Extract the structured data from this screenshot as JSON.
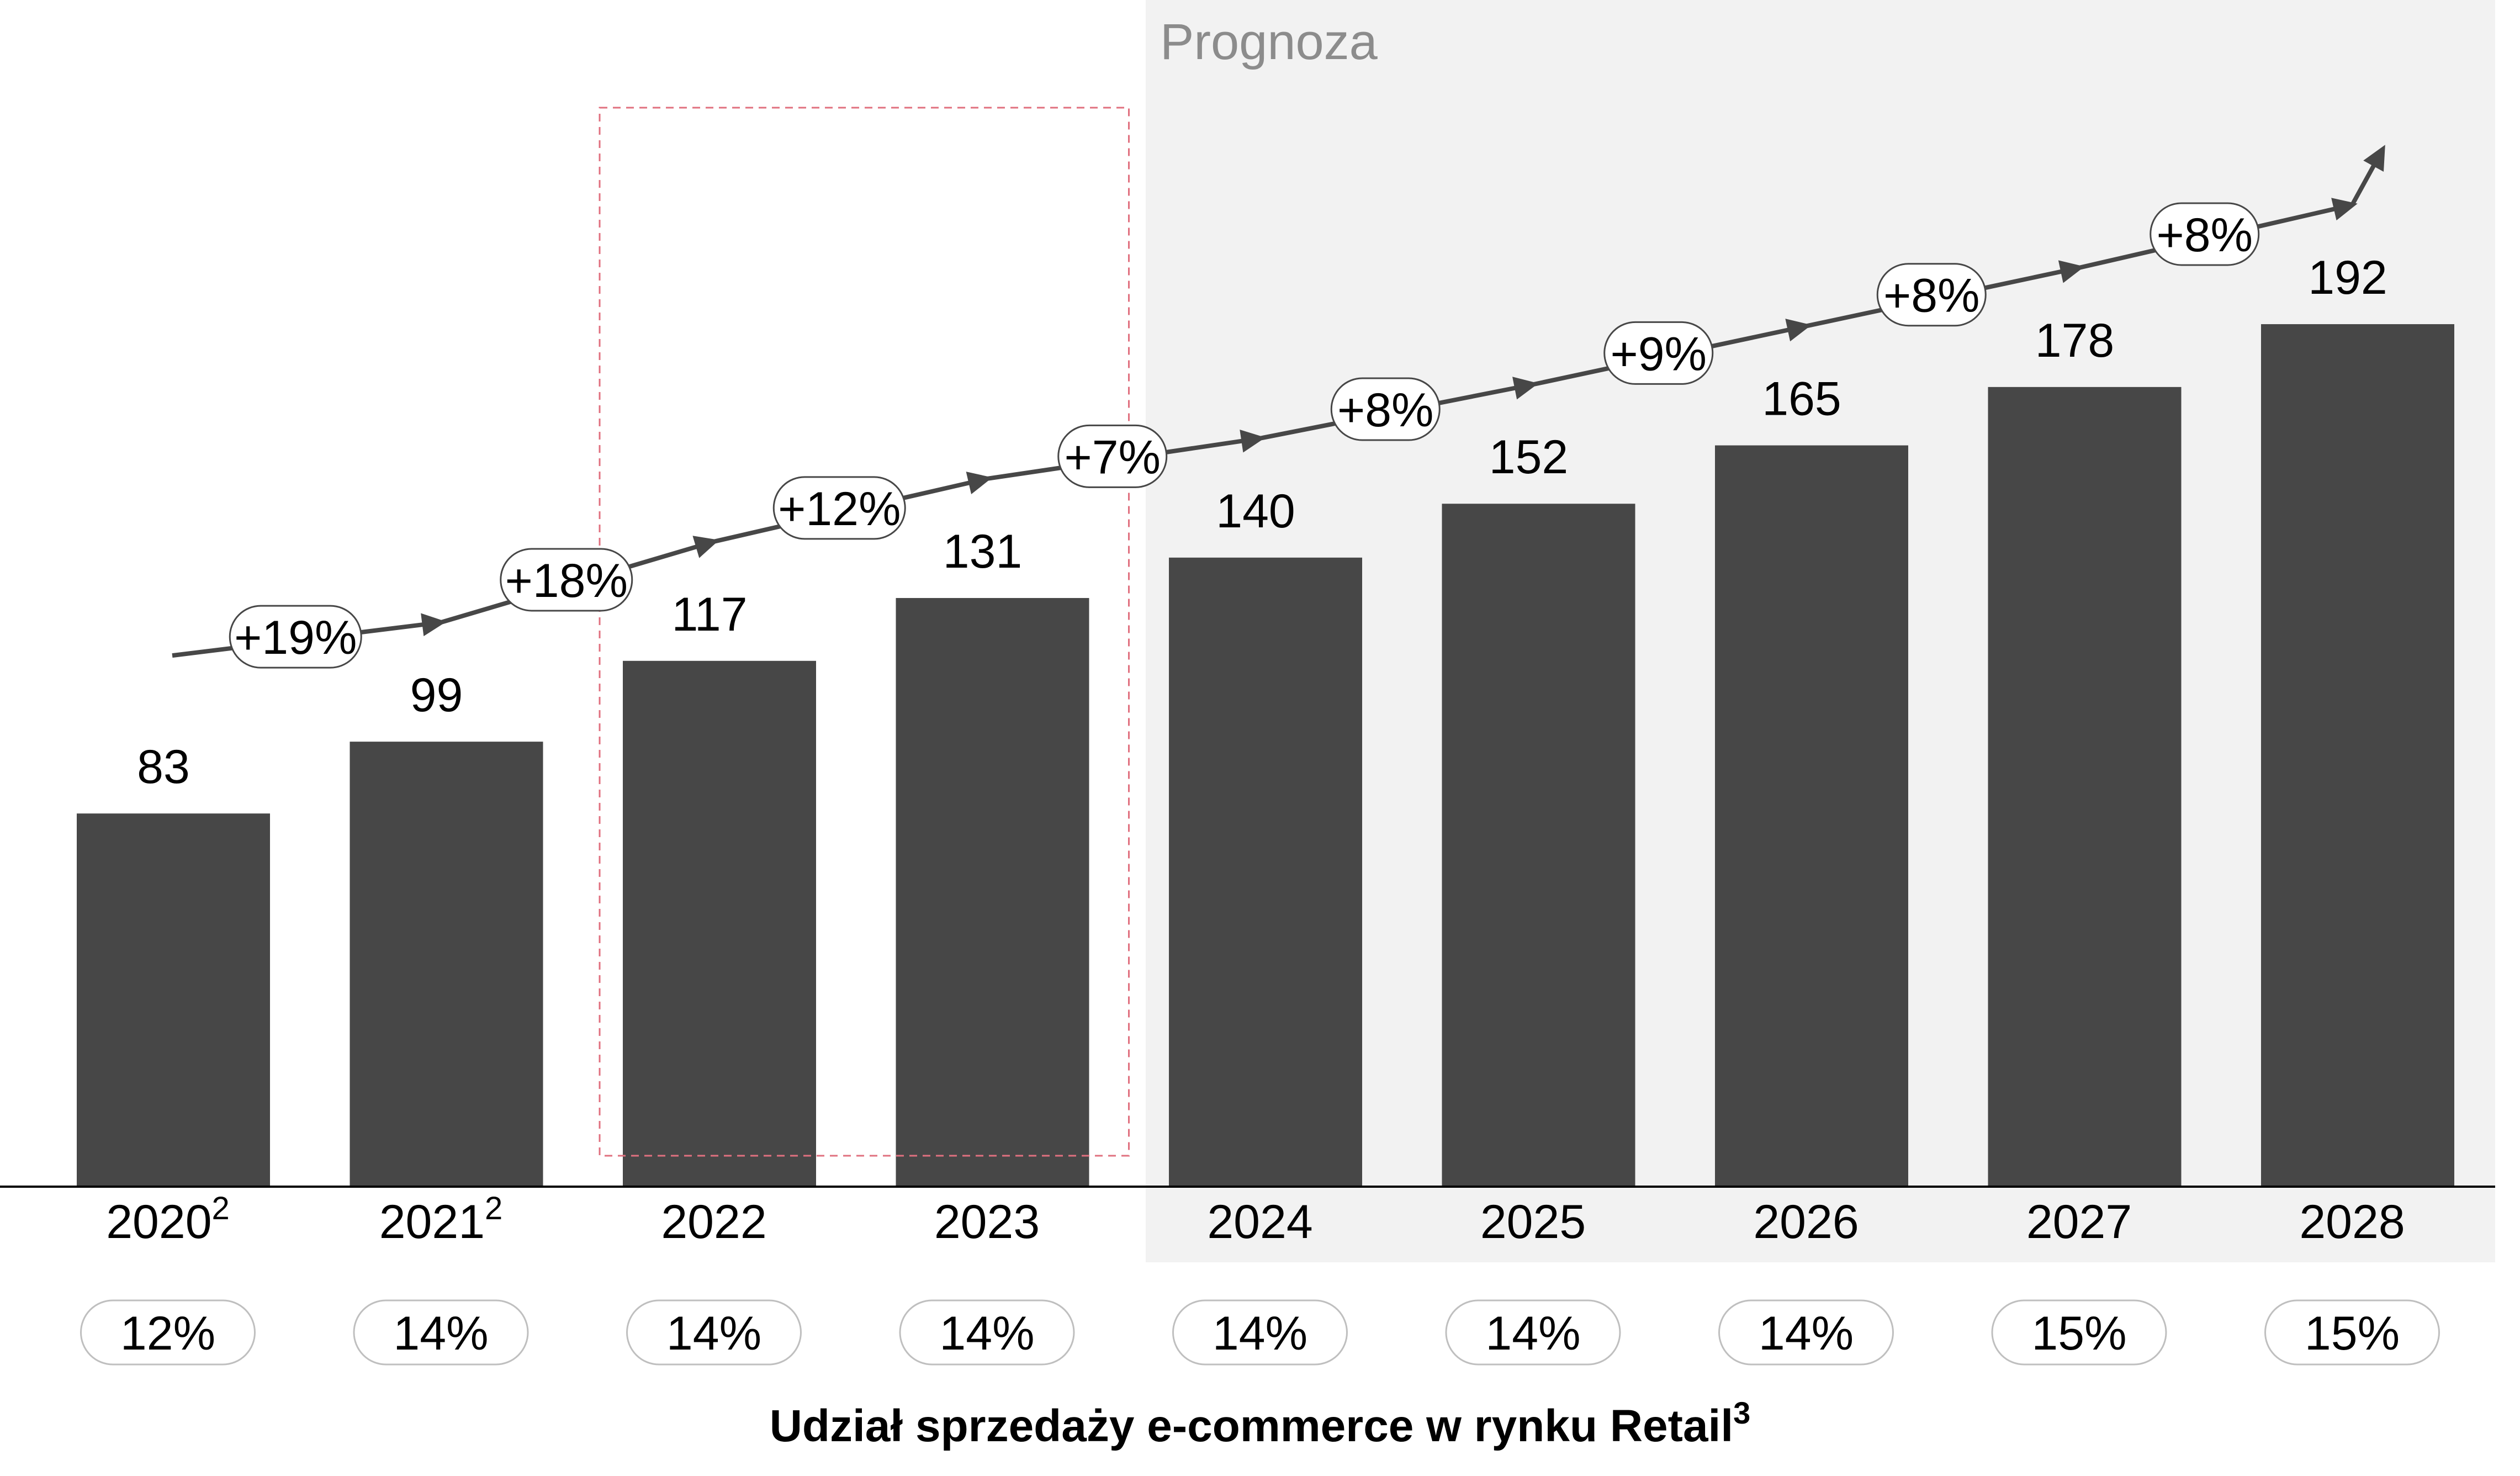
{
  "chart_data": {
    "type": "bar",
    "categories": [
      "2020",
      "2021",
      "2022",
      "2023",
      "2024",
      "2025",
      "2026",
      "2027",
      "2028"
    ],
    "category_superscripts": [
      "2",
      "2",
      "",
      "",
      "",
      "",
      "",
      "",
      ""
    ],
    "values": [
      83,
      99,
      117,
      131,
      140,
      152,
      165,
      178,
      192
    ],
    "value_labels": [
      "83",
      "99",
      "117",
      "131",
      "140",
      "152",
      "165",
      "178",
      "192"
    ],
    "growth_labels": [
      "+19%",
      "+18%",
      "+12%",
      "+7%",
      "+8%",
      "+9%",
      "+8%",
      "+8%"
    ],
    "share_labels": [
      "12%",
      "14%",
      "14%",
      "14%",
      "14%",
      "14%",
      "14%",
      "15%",
      "15%"
    ],
    "share_title": "Udział sprzedaży e-commerce w rynku Retail",
    "share_title_superscript": "3",
    "forecast_label": "Prognoza",
    "forecast_from": "2024",
    "highlighted_categories": [
      "2022",
      "2023"
    ],
    "ylim": [
      0,
      200
    ],
    "grid": false,
    "colors": {
      "bar": "#474747",
      "forecast_band": "#f2f2f2",
      "forecast_text": "#8c8c8c",
      "trend_arrow": "#474747",
      "highlight_border": "#e0707f",
      "pill_border": "#bfbfbf",
      "text": "#000000"
    }
  }
}
